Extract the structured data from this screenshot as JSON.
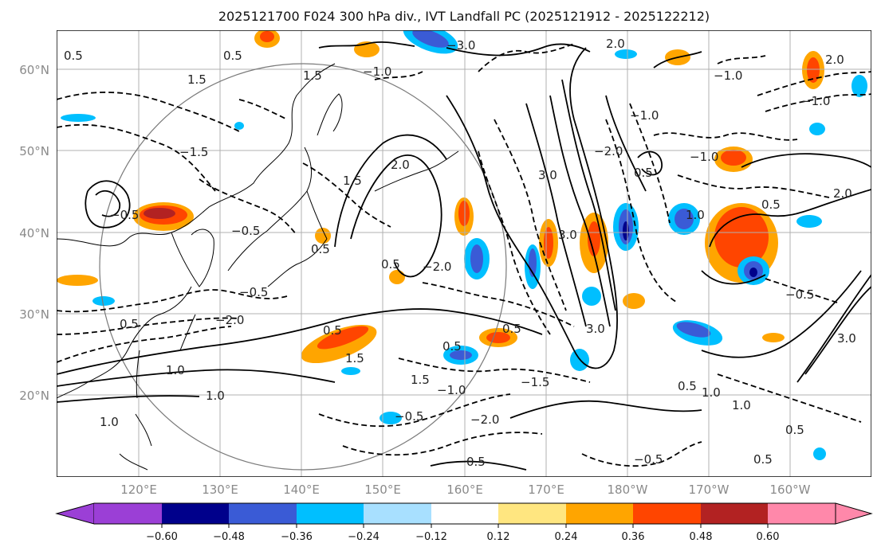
{
  "title": "2025121700 F024 300 hPa div., IVT Landfall PC (2025121912 - 2025122212)",
  "lat_labels": [
    "60°N",
    "50°N",
    "40°N",
    "30°N",
    "20°N"
  ],
  "lon_labels": [
    "120°E",
    "130°E",
    "140°E",
    "150°E",
    "160°E",
    "170°E",
    "180°W",
    "170°W",
    "160°W"
  ],
  "colorbar": {
    "colors": [
      "#9b3fd6",
      "#00008b",
      "#3a5bd6",
      "#00bfff",
      "#a8e0ff",
      "#ffffff",
      "#ffe680",
      "#ffa500",
      "#ff4500",
      "#b22222",
      "#ff88aa"
    ],
    "tick_labels": [
      "−0.60",
      "−0.48",
      "−0.36",
      "−0.24",
      "−0.12",
      "0.12",
      "0.24",
      "0.36",
      "0.48",
      "0.60"
    ]
  },
  "contour_labels": [
    "0.5",
    "1.0",
    "1.5",
    "2.0",
    "3.0",
    "−0.5",
    "−1.0",
    "−1.5",
    "−2.0",
    "−3.0"
  ],
  "chart_data": {
    "type": "heatmap",
    "projection": "map",
    "lat_range": [
      "10°N",
      "65°N"
    ],
    "lon_range": [
      "110°E",
      "150°W"
    ],
    "fill_variable": "300 hPa divergence",
    "contour_variable": "IVT Landfall PC"
  }
}
